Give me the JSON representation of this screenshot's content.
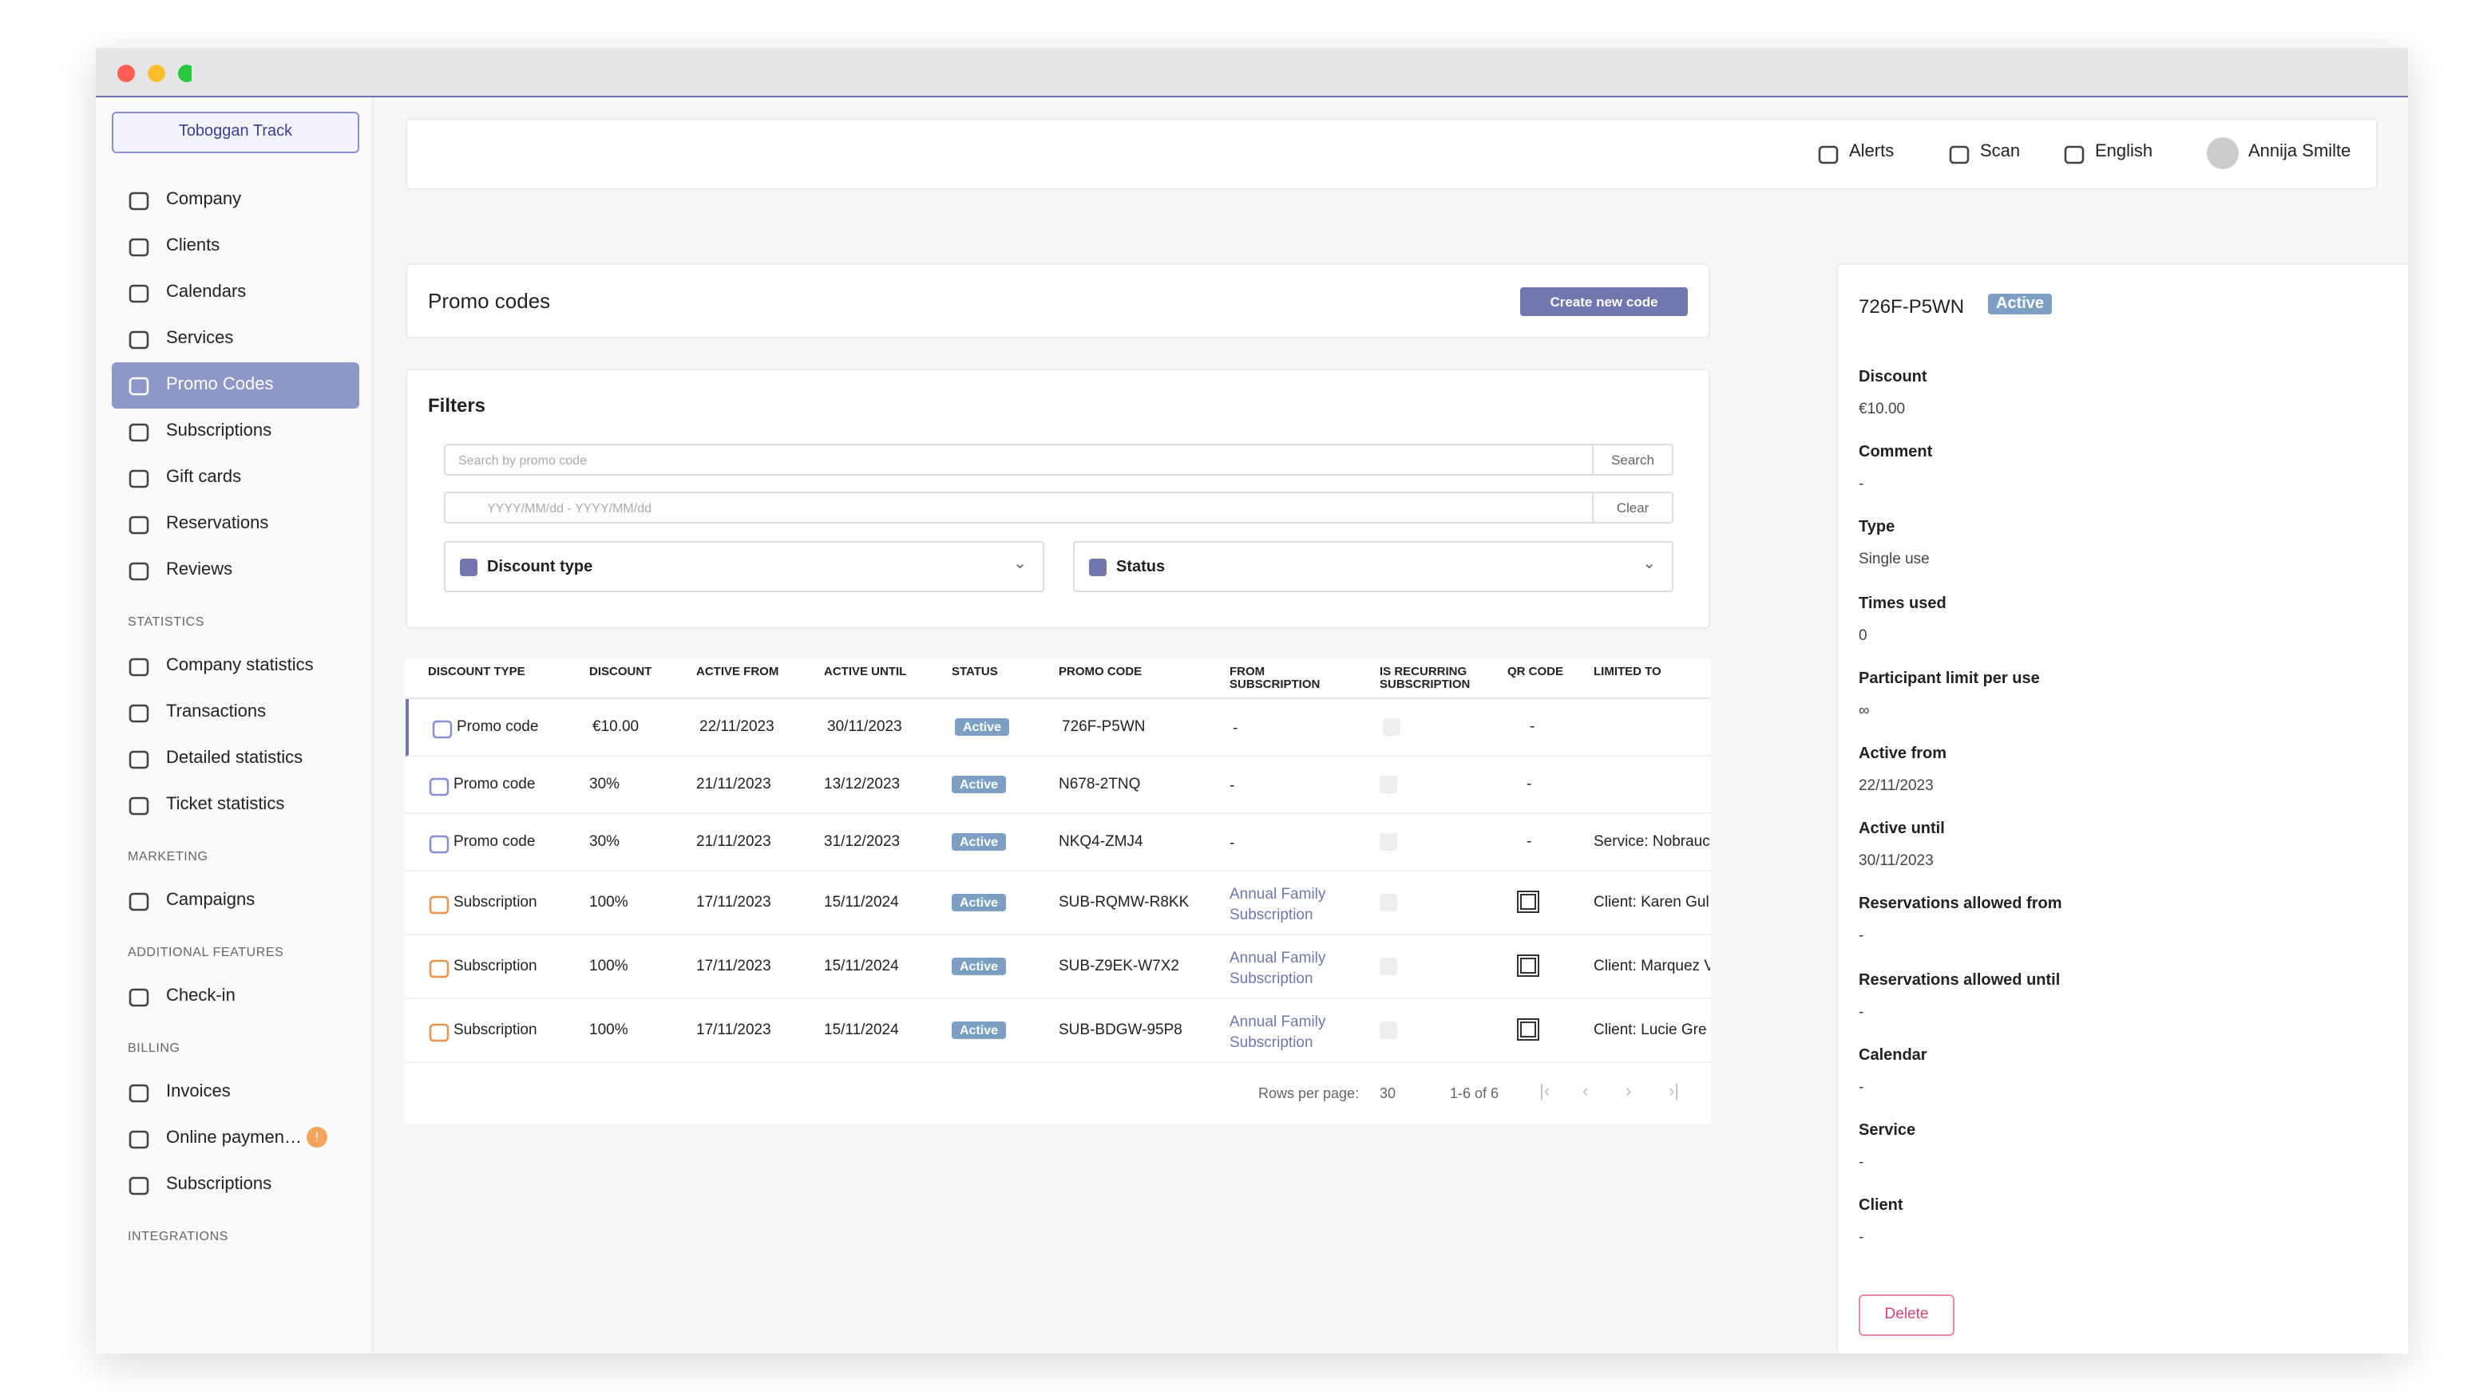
{
  "sidebar": {
    "organization": "Toboggan Track",
    "nav": [
      "Company",
      "Clients",
      "Calendars",
      "Services",
      "Promo Codes",
      "Subscriptions",
      "Gift cards",
      "Reservations",
      "Reviews"
    ],
    "sections": [
      {
        "title": "STATISTICS",
        "items": [
          "Company statistics",
          "Transactions",
          "Detailed statistics",
          "Ticket statistics"
        ]
      },
      {
        "title": "MARKETING",
        "items": [
          "Campaigns"
        ]
      },
      {
        "title": "ADDITIONAL FEATURES",
        "items": [
          "Check-in"
        ]
      },
      {
        "title": "BILLING",
        "items": [
          "Invoices",
          "Online paymen…",
          "Subscriptions"
        ]
      },
      {
        "title": "INTEGRATIONS",
        "items": []
      }
    ],
    "payment_badge": "!"
  },
  "topbar": {
    "alerts": "Alerts",
    "scan": "Scan",
    "language": "English",
    "user": "Annija Smilte"
  },
  "page": {
    "title": "Promo codes",
    "create_button": "Create new code"
  },
  "filters": {
    "title": "Filters",
    "search_placeholder": "Search by promo code",
    "search_button": "Search",
    "date_placeholder": "YYYY/MM/dd - YYYY/MM/dd",
    "clear_button": "Clear",
    "discount_type": "Discount type",
    "status": "Status"
  },
  "table": {
    "headers": [
      "DISCOUNT TYPE",
      "DISCOUNT",
      "ACTIVE FROM",
      "ACTIVE UNTIL",
      "STATUS",
      "PROMO CODE",
      "FROM SUBSCRIPTION",
      "IS RECURRING SUBSCRIPTION",
      "QR CODE",
      "LIMITED TO"
    ],
    "rows": [
      {
        "type": "Promo code",
        "discount": "€10.00",
        "active_from": "22/11/2023",
        "active_until": "30/11/2023",
        "status": "Active",
        "promo_code": "726F-P5WN",
        "from_subscription": "-",
        "qr_code": "-",
        "limited_to": null
      },
      {
        "type": "Promo code",
        "discount": "30%",
        "active_from": "21/11/2023",
        "active_until": "13/12/2023",
        "status": "Active",
        "promo_code": "N678-2TNQ",
        "from_subscription": "-",
        "qr_code": "-",
        "limited_to": null
      },
      {
        "type": "Promo code",
        "discount": "30%",
        "active_from": "21/11/2023",
        "active_until": "31/12/2023",
        "status": "Active",
        "promo_code": "NKQ4-ZMJ4",
        "from_subscription": "-",
        "qr_code": "-",
        "limited_to": "Service: Nobrauc"
      },
      {
        "type": "Subscription",
        "discount": "100%",
        "active_from": "17/11/2023",
        "active_until": "15/11/2024",
        "status": "Active",
        "promo_code": "SUB-RQMW-R8KK",
        "from_subscription": "Annual Family Subscription",
        "qr_code": null,
        "limited_to": "Client: Karen Gul"
      },
      {
        "type": "Subscription",
        "discount": "100%",
        "active_from": "17/11/2023",
        "active_until": "15/11/2024",
        "status": "Active",
        "promo_code": "SUB-Z9EK-W7X2",
        "from_subscription": "Annual Family Subscription",
        "qr_code": null,
        "limited_to": "Client: Marquez V"
      },
      {
        "type": "Subscription",
        "discount": "100%",
        "active_from": "17/11/2023",
        "active_until": "15/11/2024",
        "status": "Active",
        "promo_code": "SUB-BDGW-95P8",
        "from_subscription": "Annual Family Subscription",
        "qr_code": null,
        "limited_to": "Client: Lucie Gre"
      }
    ]
  },
  "pagination": {
    "rows_per_page_label": "Rows per page:",
    "rows_per_page": "30",
    "range": "1-6 of 6"
  },
  "detail": {
    "code": "726F-P5WN",
    "status": "Active",
    "fields": [
      {
        "label": "Discount",
        "value": "€10.00"
      },
      {
        "label": "Comment",
        "value": "-"
      },
      {
        "label": "Type",
        "value": "Single use"
      },
      {
        "label": "Times used",
        "value": "0"
      },
      {
        "label": "Participant limit per use",
        "value": "∞"
      },
      {
        "label": "Active from",
        "value": "22/11/2023"
      },
      {
        "label": "Active until",
        "value": "30/11/2023"
      },
      {
        "label": "Reservations allowed from",
        "value": "-"
      },
      {
        "label": "Reservations allowed until",
        "value": "-"
      },
      {
        "label": "Calendar",
        "value": "-"
      },
      {
        "label": "Service",
        "value": "-"
      },
      {
        "label": "Client",
        "value": "-"
      }
    ],
    "delete_button": "Delete"
  }
}
